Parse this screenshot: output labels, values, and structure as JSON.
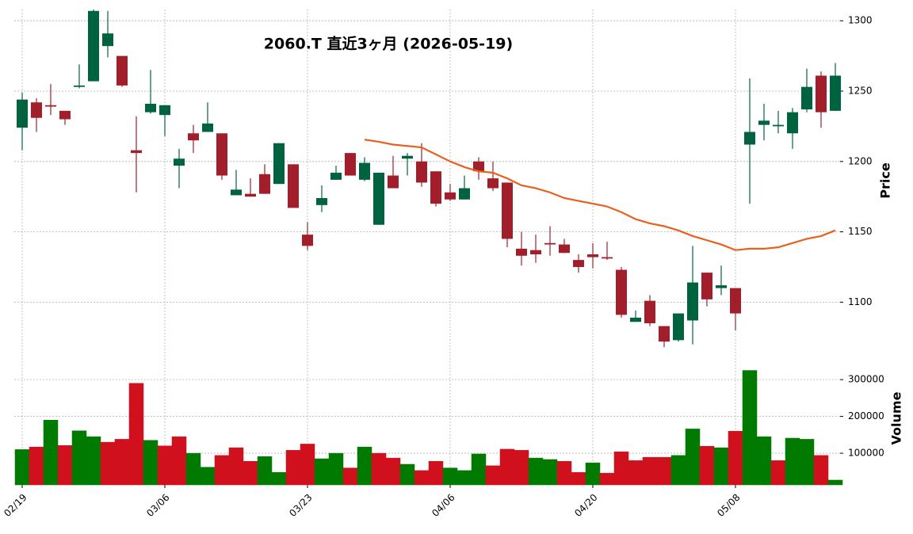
{
  "chart_data": {
    "type": "candlestick",
    "title": "2060.T  直近3ヶ月  (2026-05-19)",
    "ylabel": "Price",
    "y2label": "Volume",
    "categories": [
      "02/19",
      null,
      null,
      null,
      null,
      null,
      null,
      null,
      null,
      null,
      "03/06",
      null,
      null,
      null,
      null,
      null,
      null,
      null,
      null,
      null,
      "03/23",
      null,
      null,
      null,
      null,
      null,
      null,
      null,
      null,
      null,
      "04/06",
      null,
      null,
      null,
      null,
      null,
      null,
      null,
      null,
      null,
      "04/20",
      null,
      null,
      null,
      null,
      null,
      null,
      null,
      null,
      null,
      "05/08",
      null,
      null,
      null,
      null,
      null,
      null,
      null
    ],
    "open": [
      1224,
      1242,
      1240,
      1236,
      1253,
      1257,
      1282,
      1275,
      1208,
      1235,
      1233,
      1197,
      1220,
      1221,
      1220,
      1176,
      1177,
      1191,
      1184,
      1198,
      1148,
      1169,
      1187,
      1206,
      1187,
      1155,
      1190,
      1202,
      1200,
      1193,
      1178,
      1173,
      1200,
      1188,
      1185,
      1138,
      1137,
      1142,
      1141,
      1130,
      1134,
      1132,
      1123,
      1086,
      1101,
      1083,
      1073,
      1087,
      1121,
      1110,
      1110,
      1212,
      1226,
      1225,
      1220,
      1237,
      1261,
      1236
    ],
    "high": [
      1249,
      1245,
      1255,
      1236,
      1269,
      1308,
      1307,
      1275,
      1232,
      1265,
      1240,
      1209,
      1226,
      1242,
      1220,
      1194,
      1188,
      1198,
      1213,
      1198,
      1157,
      1183,
      1197,
      1206,
      1203,
      1192,
      1204,
      1206,
      1213,
      1193,
      1184,
      1190,
      1203,
      1200,
      1185,
      1150,
      1148,
      1154,
      1145,
      1134,
      1142,
      1143,
      1125,
      1094,
      1105,
      1083,
      1092,
      1140,
      1121,
      1126,
      1110,
      1259,
      1241,
      1236,
      1238,
      1266,
      1264,
      1270
    ],
    "low": [
      1208,
      1221,
      1233,
      1226,
      1252,
      1257,
      1274,
      1253,
      1178,
      1234,
      1218,
      1181,
      1206,
      1221,
      1187,
      1176,
      1175,
      1177,
      1184,
      1167,
      1137,
      1164,
      1187,
      1190,
      1186,
      1155,
      1181,
      1190,
      1182,
      1168,
      1172,
      1173,
      1187,
      1179,
      1139,
      1126,
      1128,
      1133,
      1135,
      1121,
      1124,
      1130,
      1089,
      1086,
      1083,
      1068,
      1072,
      1070,
      1097,
      1105,
      1080,
      1170,
      1215,
      1220,
      1209,
      1235,
      1224,
      1236
    ],
    "close": [
      1244,
      1231,
      1239,
      1230,
      1254,
      1307,
      1291,
      1254,
      1206,
      1241,
      1240,
      1202,
      1215,
      1227,
      1190,
      1180,
      1175,
      1177,
      1213,
      1167,
      1140,
      1174,
      1192,
      1190,
      1199,
      1192,
      1181,
      1204,
      1185,
      1170,
      1173,
      1181,
      1193,
      1181,
      1145,
      1133,
      1134,
      1141,
      1135,
      1125,
      1132,
      1131,
      1091,
      1089,
      1085,
      1072,
      1092,
      1114,
      1102,
      1112,
      1092,
      1221,
      1229,
      1226,
      1235,
      1253,
      1235,
      1261
    ],
    "volume": [
      110000,
      117000,
      190000,
      121000,
      161000,
      145000,
      130000,
      138000,
      290000,
      135000,
      120000,
      145000,
      100000,
      62000,
      94000,
      115000,
      78000,
      91000,
      48000,
      108000,
      125000,
      85000,
      100000,
      60000,
      117000,
      100000,
      87000,
      70000,
      53000,
      78000,
      60000,
      53000,
      98000,
      66000,
      111000,
      108000,
      87000,
      83000,
      78000,
      48000,
      74000,
      46000,
      104000,
      80000,
      89000,
      89000,
      94000,
      166000,
      119000,
      115000,
      160000,
      325000,
      145000,
      80000,
      141000,
      138000,
      94000,
      27000
    ],
    "ma": [
      null,
      null,
      null,
      null,
      null,
      null,
      null,
      null,
      null,
      null,
      null,
      null,
      null,
      null,
      null,
      null,
      null,
      null,
      null,
      null,
      null,
      null,
      null,
      null,
      1215.5,
      1214,
      1212,
      1211,
      1210,
      1205,
      1200,
      1196,
      1193,
      1192,
      1188,
      1183,
      1181,
      1178,
      1174,
      1172,
      1170,
      1168,
      1164,
      1159,
      1156,
      1154,
      1151,
      1147,
      1144,
      1141,
      1137,
      1138,
      1138,
      1139,
      1142,
      1145,
      1147,
      1151
    ],
    "up_color": "#006340",
    "down_color": "#a21e2a",
    "volume_up_color": "#007a00",
    "volume_down_color": "#d0101c",
    "ma_color": "#e8601c",
    "ylim": [
      1067,
      1308
    ],
    "yticks": [
      1100,
      1150,
      1200,
      1250,
      1300
    ],
    "y2lim": [
      14000,
      352000
    ],
    "y2ticks": [
      100000,
      200000,
      300000
    ],
    "grid": true
  }
}
